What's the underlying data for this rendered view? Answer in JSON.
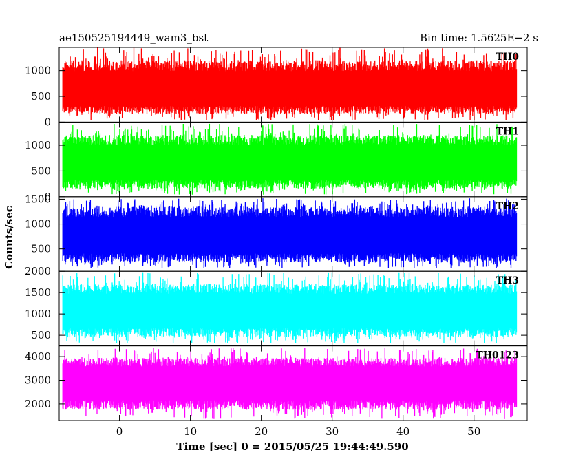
{
  "header": {
    "source_name": "ae150525194449_wam3_bst",
    "bin_time": "Bin time: 1.5625E−2 s"
  },
  "chart_data": {
    "type": "line",
    "title": "ae150525194449_wam3_bst",
    "subtitle": "Bin time: 1.5625E−2 s",
    "xlabel": "Time [sec] 0 = 2015/05/25 19:44:49.590",
    "ylabel": "Counts/sec",
    "xlim": [
      -8.5,
      57.5
    ],
    "xticks": [
      0,
      10,
      20,
      30,
      40,
      50
    ],
    "data_x_range": [
      -8.0,
      56.0
    ],
    "bin_time_s": 0.015625,
    "panels": [
      {
        "name": "TH0",
        "color": "#ff0000",
        "ylim": [
          0,
          1450
        ],
        "yticks": [
          0,
          500,
          1000
        ],
        "ytick_labels": [
          "0",
          "500",
          "1000"
        ],
        "mean": 600,
        "typical_min": 160,
        "typical_max": 1200,
        "peak_max": 1450,
        "dip_min": 30
      },
      {
        "name": "TH1",
        "color": "#00ff00",
        "ylim": [
          0,
          1450
        ],
        "yticks": [
          0,
          500,
          1000
        ],
        "ytick_labels": [
          "0",
          "500",
          "1000"
        ],
        "mean": 630,
        "typical_min": 160,
        "typical_max": 1200,
        "peak_max": 1420,
        "dip_min": 40
      },
      {
        "name": "TH2",
        "color": "#0000ff",
        "ylim": [
          50,
          1550
        ],
        "yticks": [
          500,
          1000,
          1500
        ],
        "ytick_labels": [
          "500",
          "1000",
          "1500"
        ],
        "mean": 740,
        "typical_min": 230,
        "typical_max": 1350,
        "peak_max": 1520,
        "dip_min": 110
      },
      {
        "name": "TH3",
        "color": "#00ffff",
        "ylim": [
          250,
          2000
        ],
        "yticks": [
          500,
          1000,
          1500,
          2000
        ],
        "ytick_labels": [
          "500",
          "1000",
          "1500",
          "2000"
        ],
        "mean": 1050,
        "typical_min": 460,
        "typical_max": 1700,
        "peak_max": 1980,
        "dip_min": 310
      },
      {
        "name": "TH0123",
        "color": "#ff00ff",
        "ylim": [
          1300,
          4450
        ],
        "yticks": [
          2000,
          3000,
          4000
        ],
        "ytick_labels": [
          "2000",
          "3000",
          "4000"
        ],
        "mean": 2900,
        "typical_min": 1750,
        "typical_max": 3950,
        "peak_max": 4380,
        "dip_min": 1350
      }
    ]
  }
}
